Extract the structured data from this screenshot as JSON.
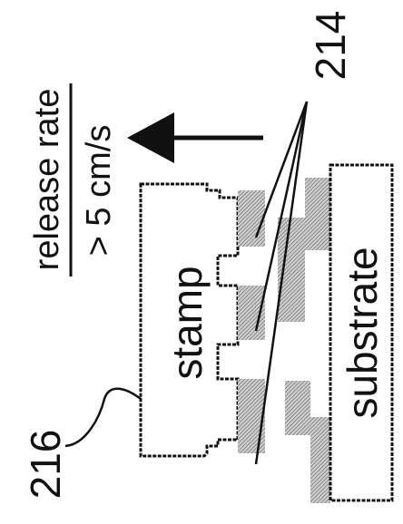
{
  "labels": {
    "stamp": "stamp",
    "substrate": "substrate",
    "release_rate_title": "release rate",
    "release_rate_value": "> 5 cm/s",
    "ref_214": "214",
    "ref_216": "216"
  }
}
